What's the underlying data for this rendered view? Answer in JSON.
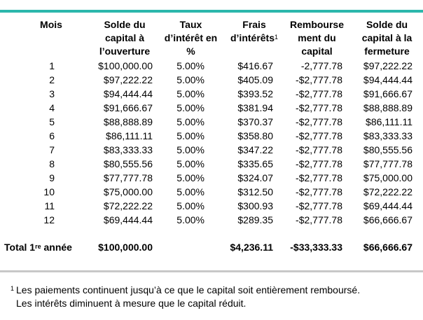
{
  "headers": {
    "month": [
      "Mois"
    ],
    "opening": [
      "Solde du",
      "capital à",
      "l’ouverture"
    ],
    "rate": [
      "Taux",
      "d’intérêt en",
      "%"
    ],
    "interest": [
      "Frais",
      "d’intérêts"
    ],
    "interest_note": "1",
    "repayment": [
      "Rembourse",
      "ment du",
      "capital"
    ],
    "closing": [
      "Solde du",
      "capital à la",
      "fermeture"
    ]
  },
  "rows": [
    {
      "month": "1",
      "opening": "$100,000.00",
      "rate": "5.00%",
      "interest": "$416.67",
      "repayment": "-2,777.78",
      "closing": "$97,222.22"
    },
    {
      "month": "2",
      "opening": "$97,222.22",
      "rate": "5.00%",
      "interest": "$405.09",
      "repayment": "-$2,777.78",
      "closing": "$94,444.44"
    },
    {
      "month": "3",
      "opening": "$94,444.44",
      "rate": "5.00%",
      "interest": "$393.52",
      "repayment": "-$2,777.78",
      "closing": "$91,666.67"
    },
    {
      "month": "4",
      "opening": "$91,666.67",
      "rate": "5.00%",
      "interest": "$381.94",
      "repayment": "-$2,777.78",
      "closing": "$88,888.89"
    },
    {
      "month": "5",
      "opening": "$88,888.89",
      "rate": "5.00%",
      "interest": "$370.37",
      "repayment": "-$2,777.78",
      "closing": "$86,111.11"
    },
    {
      "month": "6",
      "opening": "$86,111.11",
      "rate": "5.00%",
      "interest": "$358.80",
      "repayment": "-$2,777.78",
      "closing": "$83,333.33"
    },
    {
      "month": "7",
      "opening": "$83,333.33",
      "rate": "5.00%",
      "interest": "$347.22",
      "repayment": "-$2,777.78",
      "closing": "$80,555.56"
    },
    {
      "month": "8",
      "opening": "$80,555.56",
      "rate": "5.00%",
      "interest": "$335.65",
      "repayment": "-$2,777.78",
      "closing": "$77,777.78"
    },
    {
      "month": "9",
      "opening": "$77,777.78",
      "rate": "5.00%",
      "interest": "$324.07",
      "repayment": "-$2,777.78",
      "closing": "$75,000.00"
    },
    {
      "month": "10",
      "opening": "$75,000.00",
      "rate": "5.00%",
      "interest": "$312.50",
      "repayment": "-$2,777.78",
      "closing": "$72,222.22"
    },
    {
      "month": "11",
      "opening": "$72,222.22",
      "rate": "5.00%",
      "interest": "$300.93",
      "repayment": "-$2,777.78",
      "closing": "$69,444.44"
    },
    {
      "month": "12",
      "opening": "$69,444.44",
      "rate": "5.00%",
      "interest": "$289.35",
      "repayment": "-$2,777.78",
      "closing": "$66,666.67"
    }
  ],
  "total": {
    "label_pre": "Total 1",
    "label_sup": "re",
    "label_post": " année",
    "opening": "$100,000.00",
    "interest": "$4,236.11",
    "repayment": "-$33,333.33",
    "closing": "$66,666.67"
  },
  "footnote": {
    "marker": "1",
    "line1": "Les paiements continuent jusqu’à ce que le capital soit entièrement remboursé.",
    "line2": "Les intérêts diminuent à mesure que le capital réduit."
  },
  "colors": {
    "top_rule": "#2cb7ac",
    "bottom_rule": "#c8c8c8"
  }
}
